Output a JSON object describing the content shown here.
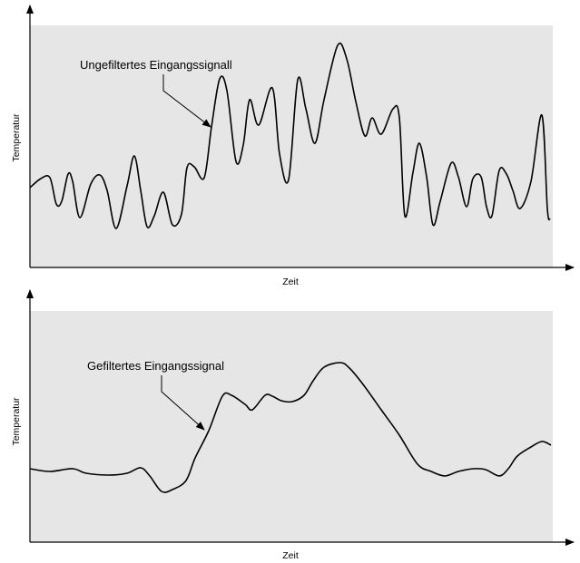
{
  "top": {
    "annotation": "Ungefiltertes Eingangssignall",
    "y_label": "Temperatur",
    "x_label": "Zeit"
  },
  "bottom": {
    "annotation": "Gefiltertes Eingangssignal",
    "y_label": "Temperatur",
    "x_label": "Zeit"
  }
}
